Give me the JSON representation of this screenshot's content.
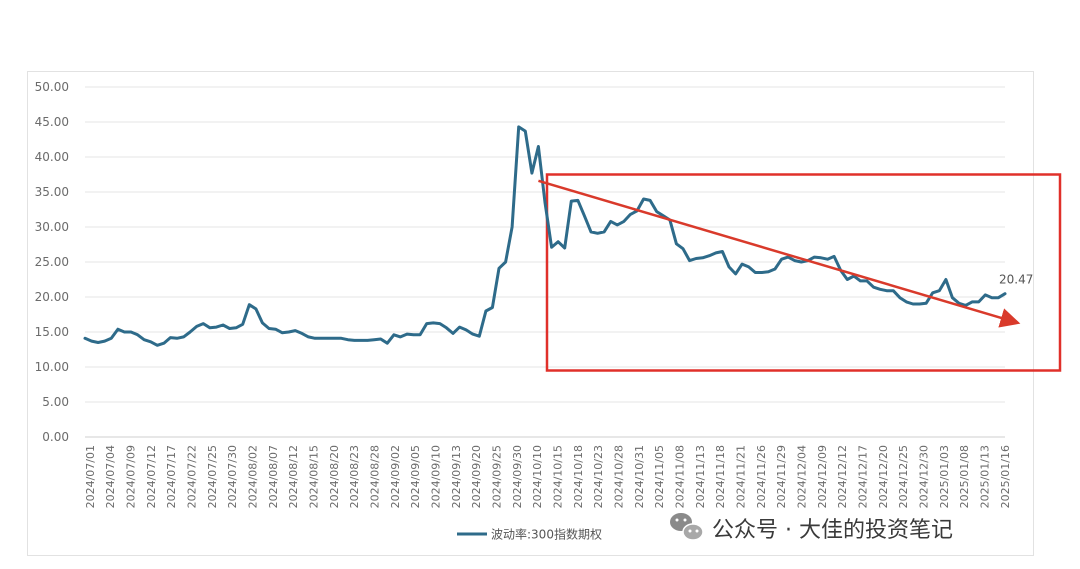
{
  "chart_data": {
    "type": "line",
    "title": "",
    "xlabel": "",
    "ylabel": "",
    "ylim": [
      0,
      50
    ],
    "y_ticks": [
      "0.00",
      "5.00",
      "10.00",
      "15.00",
      "20.00",
      "25.00",
      "30.00",
      "35.00",
      "40.00",
      "45.00",
      "50.00"
    ],
    "x_tick_labels": [
      "2024/07/01",
      "2024/07/04",
      "2024/07/09",
      "2024/07/12",
      "2024/07/17",
      "2024/07/22",
      "2024/07/25",
      "2024/07/30",
      "2024/08/02",
      "2024/08/07",
      "2024/08/12",
      "2024/08/15",
      "2024/08/20",
      "2024/08/23",
      "2024/08/28",
      "2024/09/02",
      "2024/09/05",
      "2024/09/10",
      "2024/09/13",
      "2024/09/20",
      "2024/09/25",
      "2024/09/30",
      "2024/10/10",
      "2024/10/15",
      "2024/10/18",
      "2024/10/23",
      "2024/10/28",
      "2024/10/31",
      "2024/11/05",
      "2024/11/08",
      "2024/11/13",
      "2024/11/18",
      "2024/11/21",
      "2024/11/26",
      "2024/11/29",
      "2024/12/04",
      "2024/12/09",
      "2024/12/12",
      "2024/12/17",
      "2024/12/20",
      "2024/12/25",
      "2024/12/30",
      "2025/01/03",
      "2025/01/08",
      "2025/01/13",
      "2025/01/16"
    ],
    "grid": true,
    "legend_position": "bottom",
    "series": [
      {
        "name": "波动率:300指数期权",
        "color": "#2e6b8a",
        "values": [
          14.1,
          13.7,
          13.5,
          13.7,
          14.1,
          15.4,
          15.0,
          15.0,
          14.6,
          13.9,
          13.6,
          13.1,
          13.4,
          14.2,
          14.1,
          14.3,
          15.0,
          15.8,
          16.2,
          15.6,
          15.7,
          16.0,
          15.5,
          15.6,
          16.1,
          18.9,
          18.3,
          16.3,
          15.5,
          15.4,
          14.9,
          15.0,
          15.2,
          14.8,
          14.3,
          14.1,
          14.1,
          14.1,
          14.1,
          14.1,
          13.9,
          13.8,
          13.8,
          13.8,
          13.9,
          14.0,
          13.4,
          14.6,
          14.3,
          14.7,
          14.6,
          14.6,
          16.2,
          16.3,
          16.2,
          15.6,
          14.8,
          15.7,
          15.3,
          14.7,
          14.4,
          18.0,
          18.5,
          24.1,
          25.0,
          30.0,
          44.3,
          43.7,
          37.7,
          41.5,
          33.5,
          27.1,
          27.9,
          27.0,
          33.7,
          33.8,
          31.6,
          29.3,
          29.1,
          29.3,
          30.8,
          30.3,
          30.8,
          31.8,
          32.3,
          34.0,
          33.8,
          32.2,
          31.6,
          31.0,
          27.6,
          26.9,
          25.2,
          25.5,
          25.6,
          25.9,
          26.3,
          26.5,
          24.3,
          23.3,
          24.7,
          24.3,
          23.5,
          23.5,
          23.6,
          24.0,
          25.4,
          25.7,
          25.2,
          25.0,
          25.2,
          25.7,
          25.6,
          25.4,
          25.8,
          23.8,
          22.5,
          23.0,
          22.3,
          22.3,
          21.4,
          21.1,
          20.9,
          20.9,
          19.9,
          19.3,
          19.0,
          19.0,
          19.1,
          20.6,
          20.9,
          22.5,
          19.9,
          19.1,
          18.8,
          19.3,
          19.3,
          20.3,
          19.9,
          19.9,
          20.47
        ]
      }
    ],
    "annotations": {
      "last_value_label": "20.47",
      "trend_arrow": {
        "from_index": 69,
        "from_value": 36.6,
        "to_index": 141,
        "to_value": 16.4,
        "color": "#d93a2b"
      },
      "highlight_box": {
        "from_index": 69,
        "to_index": 143,
        "y_top": 37.5,
        "y_bottom": 9.5,
        "color": "#e0302a"
      }
    }
  },
  "watermark": {
    "text": "公众号 · 大佳的投资笔记",
    "icon": "wechat-icon"
  }
}
